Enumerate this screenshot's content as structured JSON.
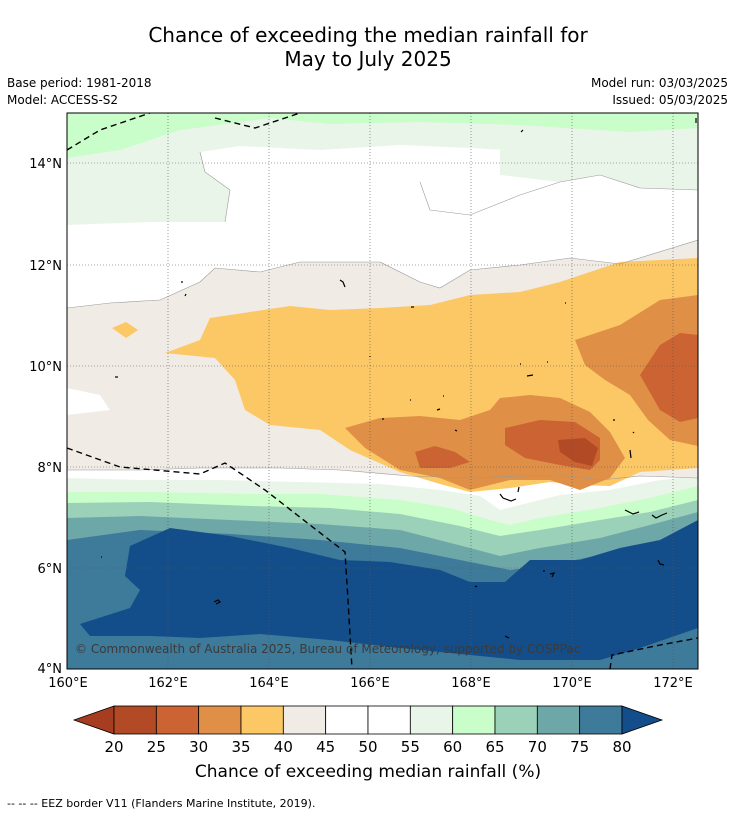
{
  "title_line1": "Chance of exceeding the median rainfall for",
  "title_line2": "May to July 2025",
  "base_period": "Base period: 1981-2018",
  "model": "Model: ACCESS-S2",
  "model_run": "Model run: 03/03/2025",
  "issued": "Issued: 05/03/2025",
  "copyright": "© Commonwealth of Australia 2025, Bureau of Meteorology, supported by COSPPac",
  "lon_labels": [
    "160°E",
    "162°E",
    "164°E",
    "166°E",
    "168°E",
    "170°E",
    "172°E"
  ],
  "lat_labels": [
    "14°N",
    "12°N",
    "10°N",
    "8°N",
    "6°N",
    "4°N"
  ],
  "colorbar": {
    "ticks": [
      "20",
      "25",
      "30",
      "35",
      "40",
      "45",
      "50",
      "55",
      "60",
      "65",
      "70",
      "75",
      "80"
    ],
    "colors": [
      "#a63d20",
      "#b24a25",
      "#cb6332",
      "#e09046",
      "#fcc865",
      "#f0ebe5",
      "#ffffff",
      "#ffffff",
      "#e9f5e8",
      "#c9fdc9",
      "#9ad1b8",
      "#6ea7a8",
      "#3e7a9a",
      "#144e8a"
    ],
    "title": "Chance of exceeding median rainfall (%)"
  },
  "footnote": "--  --  -- EEZ border V11 (Flanders Marine Institute, 2019)."
}
